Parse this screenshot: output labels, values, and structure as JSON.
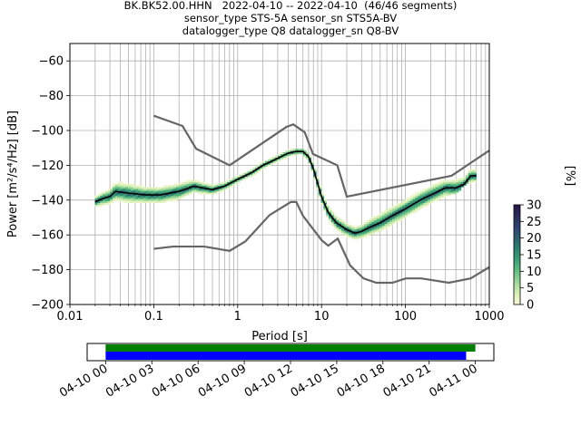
{
  "chart_data": [
    {
      "type": "heatmap",
      "title": [
        "BK.BK52.00.HHN   2022-04-10 -- 2022-04-10  (46/46 segments)",
        "sensor_type STS-5A sensor_sn STS5A-BV",
        "datalogger_type Q8 datalogger_sn Q8-BV"
      ],
      "xlabel": "Period [s]",
      "ylabel": "Power [m²/s⁴/Hz] [dB]",
      "xscale": "log",
      "xlim": [
        0.01,
        1000
      ],
      "ylim": [
        -200,
        -50
      ],
      "x_ticks": [
        "0.01",
        "0.1",
        "1",
        "10",
        "100",
        "1000"
      ],
      "x_tick_values": [
        0.01,
        0.1,
        1,
        10,
        100,
        1000
      ],
      "y_ticks": [
        -200,
        -180,
        -160,
        -140,
        -120,
        -100,
        -80,
        -60
      ],
      "grid": true,
      "colorbar": {
        "label": "[%]",
        "range": [
          0,
          30
        ],
        "ticks": [
          0,
          5,
          10,
          15,
          20,
          25,
          30
        ]
      },
      "noise_models": [
        {
          "name": "high",
          "x": [
            0.1,
            0.22,
            0.32,
            0.8,
            3.8,
            4.6,
            6.3,
            7.9,
            15.4,
            20,
            354.8,
            1000
          ],
          "y": [
            -91.5,
            -97.4,
            -110.5,
            -120,
            -98,
            -96.5,
            -101,
            -113.5,
            -120,
            -138,
            -126,
            -111.5
          ]
        },
        {
          "name": "low",
          "x": [
            0.1,
            0.17,
            0.4,
            0.8,
            1.24,
            2.4,
            4.3,
            5,
            6,
            10,
            12,
            15.6,
            21.9,
            31.6,
            45,
            70,
            101,
            154,
            328,
            600,
            1000
          ],
          "y": [
            -168,
            -166.7,
            -166.7,
            -169.2,
            -163.7,
            -148.6,
            -141.1,
            -141.1,
            -149,
            -163,
            -166.2,
            -162.1,
            -177.5,
            -185,
            -187.5,
            -187.5,
            -185,
            -185,
            -187.5,
            -185,
            -178.5
          ]
        }
      ],
      "mode_curve": {
        "x": [
          0.02,
          0.025,
          0.03,
          0.035,
          0.05,
          0.08,
          0.12,
          0.2,
          0.3,
          0.5,
          0.7,
          1,
          1.5,
          2,
          3,
          4,
          5,
          6,
          7,
          8,
          10,
          12,
          15,
          20,
          25,
          30,
          40,
          50,
          70,
          100,
          150,
          200,
          300,
          400,
          500,
          600,
          700
        ],
        "y": [
          -141,
          -139,
          -138,
          -135,
          -136,
          -137,
          -137,
          -135,
          -132,
          -134,
          -132,
          -128,
          -124,
          -120,
          -116,
          -113,
          -112,
          -112,
          -115,
          -122,
          -138,
          -147,
          -153,
          -157,
          -159,
          -158,
          -155,
          -153,
          -149,
          -145,
          -140,
          -137,
          -133,
          -133,
          -131,
          -126,
          -126
        ]
      },
      "psd_band": {
        "x": [
          0.02,
          0.025,
          0.03,
          0.035,
          0.05,
          0.08,
          0.12,
          0.2,
          0.3,
          0.5,
          0.7,
          1,
          1.5,
          2,
          3,
          4,
          5,
          6,
          7,
          8,
          10,
          12,
          15,
          20,
          25,
          30,
          40,
          50,
          70,
          100,
          150,
          200,
          300,
          400,
          500,
          600,
          700
        ],
        "upper": [
          -136,
          -134,
          -132,
          -128,
          -129,
          -131,
          -132,
          -130,
          -129,
          -131,
          -130,
          -126,
          -122,
          -118,
          -114,
          -111,
          -110,
          -110,
          -113,
          -119,
          -135,
          -143,
          -149,
          -153,
          -154,
          -153,
          -149,
          -146,
          -142,
          -138,
          -133,
          -130,
          -127,
          -125,
          -122,
          -121,
          -121
        ],
        "lower": [
          -143,
          -142,
          -141,
          -139,
          -141,
          -141,
          -142,
          -140,
          -137,
          -137,
          -135,
          -130,
          -126,
          -122,
          -118,
          -115,
          -114,
          -114,
          -118,
          -126,
          -142,
          -151,
          -157,
          -161,
          -162,
          -161,
          -159,
          -157,
          -153,
          -149,
          -144,
          -141,
          -137,
          -135,
          -131,
          -129,
          -129
        ]
      }
    },
    {
      "type": "bar",
      "title": "",
      "x_ticks": [
        "04-10 00",
        "04-10 03",
        "04-10 06",
        "04-10 09",
        "04-10 12",
        "04-10 15",
        "04-10 18",
        "04-10 21",
        "04-11 00"
      ],
      "series": [
        {
          "color": "#008000",
          "start_hour": 0,
          "end_hour": 24.0
        },
        {
          "color": "#0000ff",
          "start_hour": 0,
          "end_hour": 23.4
        }
      ],
      "xlim_hours": [
        -1.2,
        25.2
      ]
    }
  ],
  "colors": {
    "noise_model": "#666666",
    "mode": "#000000",
    "grid": "#b0b0b0",
    "coverage_data": "#008000",
    "coverage_segments": "#0000ff"
  },
  "colormap_stops": [
    "#fbfad9",
    "#d7efb3",
    "#9dd89a",
    "#63c082",
    "#3aa376",
    "#2c826f",
    "#2d6270",
    "#2d4372",
    "#2b2c5f",
    "#2a1244"
  ]
}
